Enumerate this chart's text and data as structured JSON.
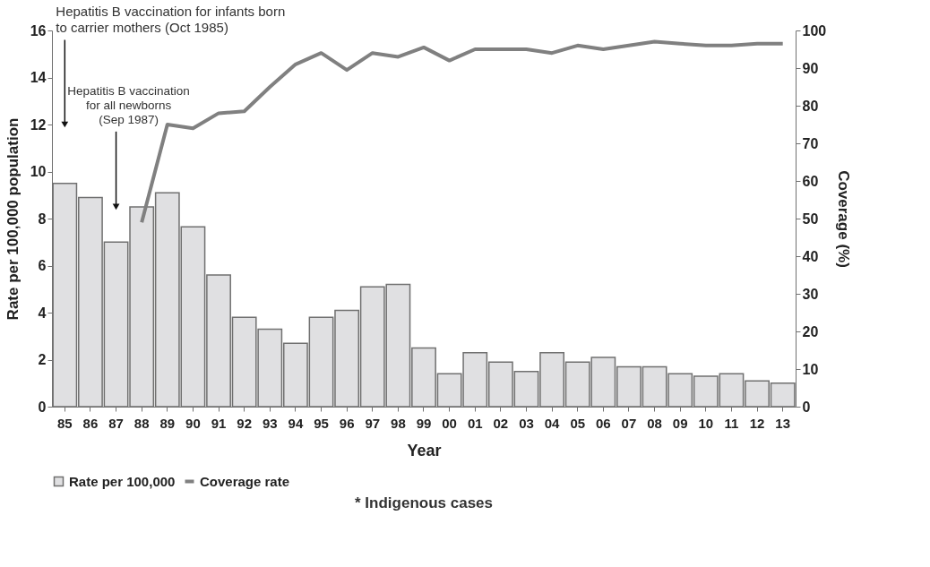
{
  "chart_data": {
    "type": "bar",
    "xlabel": "Year",
    "ylabel": "Rate per 100,000  population",
    "y2label": "Coverage (%)",
    "categories": [
      "85",
      "86",
      "87",
      "88",
      "89",
      "90",
      "91",
      "92",
      "93",
      "94",
      "95",
      "96",
      "97",
      "98",
      "99",
      "00",
      "01",
      "02",
      "03",
      "04",
      "05",
      "06",
      "07",
      "08",
      "09",
      "10",
      "11",
      "12",
      "13"
    ],
    "series": [
      {
        "name": "Rate per 100,000",
        "color": "#e0e0e2",
        "values": [
          9.5,
          8.9,
          7.0,
          8.5,
          9.1,
          7.65,
          5.6,
          3.8,
          3.3,
          2.7,
          3.8,
          4.1,
          5.1,
          5.2,
          2.5,
          1.4,
          2.3,
          1.9,
          1.5,
          2.3,
          1.9,
          2.1,
          1.7,
          1.7,
          1.4,
          1.3,
          1.4,
          1.1,
          1.0
        ]
      },
      {
        "name": "Coverage rate",
        "type": "line",
        "axis": "y2",
        "color": "#808080",
        "values": [
          null,
          null,
          null,
          49,
          75,
          74,
          78,
          78.5,
          85,
          91,
          94,
          89.5,
          94,
          93,
          95.5,
          92,
          95,
          95,
          95,
          94,
          96,
          95,
          96,
          97,
          96.5,
          96,
          96,
          96.5,
          96.5
        ]
      }
    ],
    "ylim": [
      0,
      16
    ],
    "yticks": [
      0,
      2,
      4,
      6,
      8,
      10,
      12,
      14,
      16
    ],
    "y2lim": [
      0,
      100
    ],
    "y2ticks": [
      0,
      10,
      20,
      30,
      40,
      50,
      60,
      70,
      80,
      90,
      100
    ],
    "grid": false,
    "legend": "bottom",
    "marker": "none",
    "annotations": [
      {
        "text": "Hepatitis B  vaccination for infants born\nto carrier mothers (Oct 1985)",
        "x": "85",
        "y": 12
      },
      {
        "text": "Hepatitis B  vaccination\nfor all newborns\n(Sep 1987)",
        "x": "87",
        "y": 8.5
      },
      "* Indigenous cases"
    ]
  }
}
